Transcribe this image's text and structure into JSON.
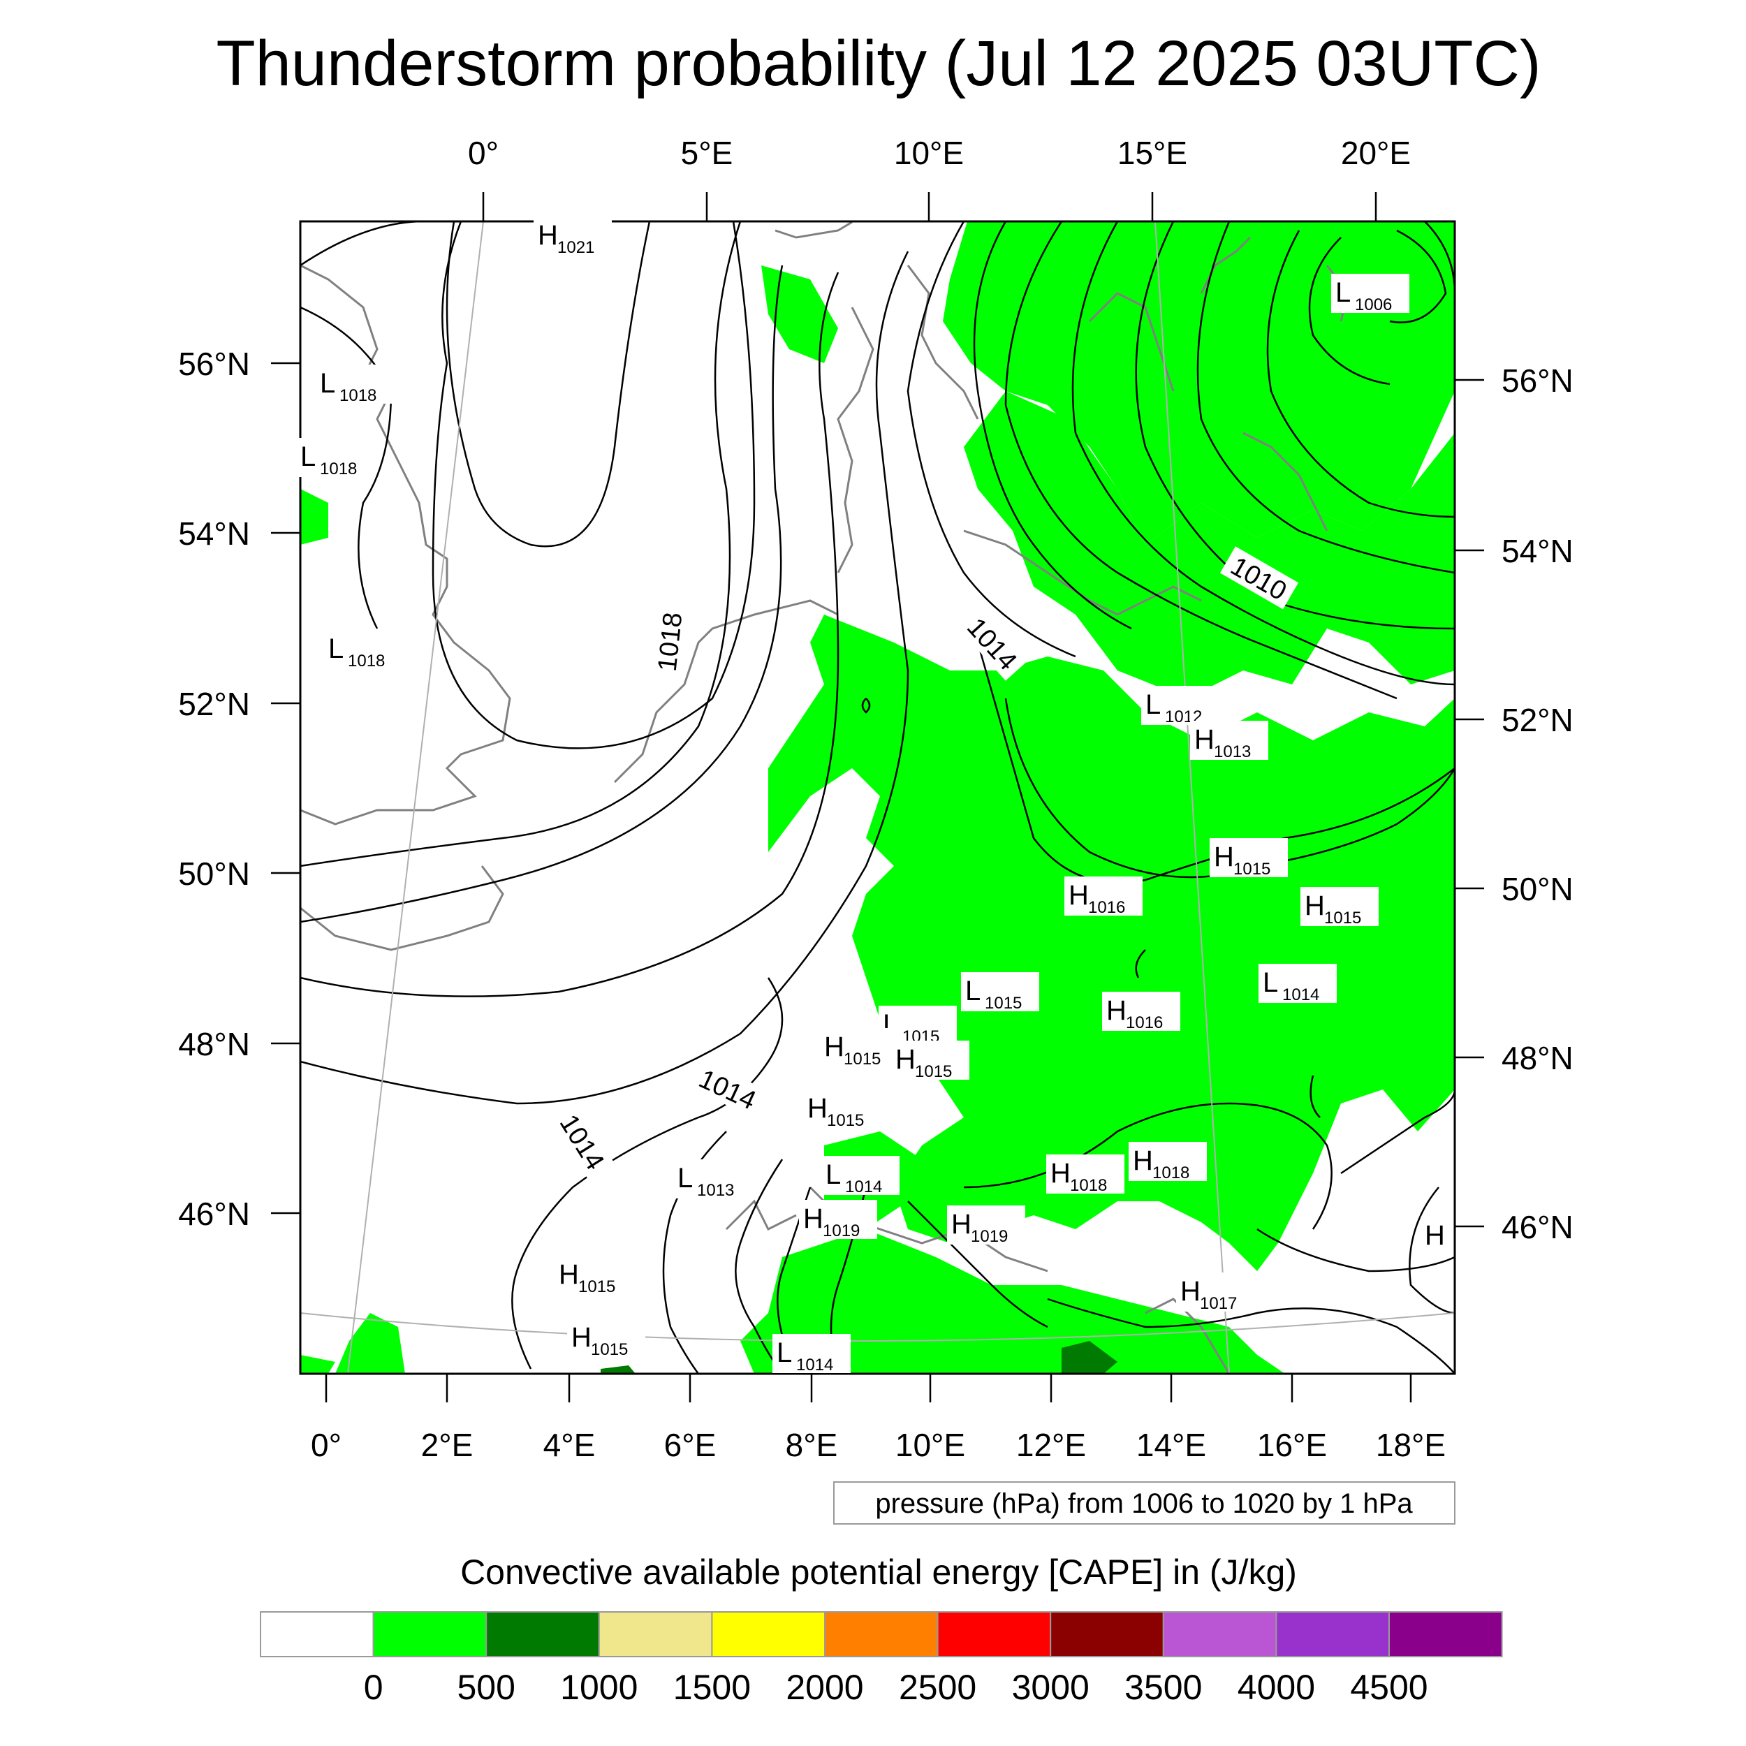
{
  "title": "Thunderstorm probability (Jul 12 2025 03UTC)",
  "axes": {
    "top_lon": [
      "0°",
      "5°E",
      "10°E",
      "15°E",
      "20°E"
    ],
    "bottom_lon": [
      "0°",
      "2°E",
      "4°E",
      "6°E",
      "8°E",
      "10°E",
      "12°E",
      "14°E",
      "16°E",
      "18°E"
    ],
    "left_lat": [
      "56°N",
      "54°N",
      "52°N",
      "50°N",
      "48°N",
      "46°N"
    ],
    "right_lat": [
      "56°N",
      "54°N",
      "52°N",
      "50°N",
      "48°N",
      "46°N"
    ]
  },
  "pressure_note": "pressure (hPa) from 1006 to 1020 by 1 hPa",
  "pressure_centers": [
    {
      "t": "H",
      "v": "1021"
    },
    {
      "t": "L",
      "v": "1006"
    },
    {
      "t": "L",
      "v": "1018"
    },
    {
      "t": "L",
      "v": "1018"
    },
    {
      "t": "L",
      "v": "1018"
    },
    {
      "t": "L",
      "v": "1012"
    },
    {
      "t": "H",
      "v": "1013"
    },
    {
      "t": "H",
      "v": "1015"
    },
    {
      "t": "H",
      "v": "1016"
    },
    {
      "t": "H",
      "v": "1015"
    },
    {
      "t": "L",
      "v": "1014"
    },
    {
      "t": "L",
      "v": "1015"
    },
    {
      "t": "H",
      "v": "1016"
    },
    {
      "t": "L",
      "v": "1015"
    },
    {
      "t": "H",
      "v": "1015"
    },
    {
      "t": "H",
      "v": "1015"
    },
    {
      "t": "H",
      "v": "1015"
    },
    {
      "t": "L",
      "v": "1013"
    },
    {
      "t": "L",
      "v": "1014"
    },
    {
      "t": "H",
      "v": "1018"
    },
    {
      "t": "H",
      "v": "1018"
    },
    {
      "t": "H",
      "v": "1019"
    },
    {
      "t": "H",
      "v": "1019"
    },
    {
      "t": "H",
      "v": "1015"
    },
    {
      "t": "H",
      "v": "1015"
    },
    {
      "t": "H",
      "v": "1017"
    },
    {
      "t": "L",
      "v": "1014"
    },
    {
      "t": "H",
      "v": ""
    }
  ],
  "contour_labels": [
    "1018",
    "1014",
    "1014",
    "1014",
    "1010"
  ],
  "colorbar": {
    "title": "Convective available potential energy [CAPE] in (J/kg)",
    "colors": [
      "#ffffff",
      "#00ff00",
      "#007a00",
      "#f0e68c",
      "#ffff00",
      "#ff8000",
      "#ff0000",
      "#8b0000",
      "#ba55d3",
      "#9932cc",
      "#8b008b"
    ],
    "labels": [
      "0",
      "500",
      "1000",
      "1500",
      "2000",
      "2500",
      "3000",
      "3500",
      "4000",
      "4500"
    ]
  },
  "colors": {
    "cape_green": "#00ff00",
    "cape_dark_green": "#007a00",
    "isobar": "#000000",
    "coastline": "#808080"
  }
}
